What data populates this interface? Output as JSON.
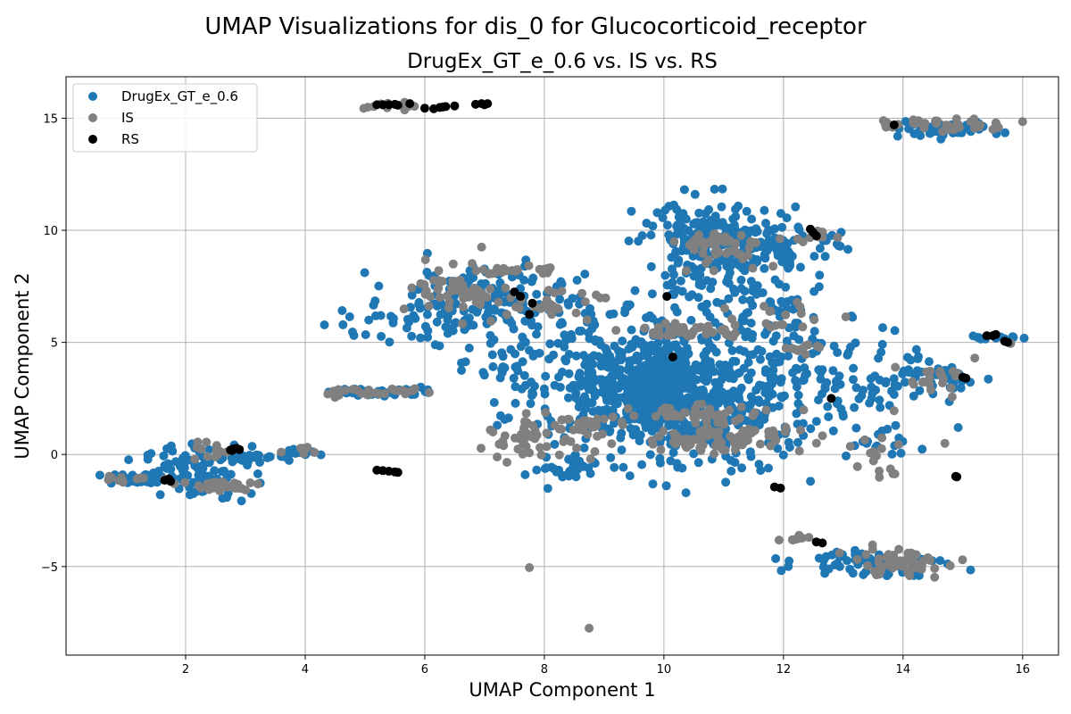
{
  "figure": {
    "suptitle": "UMAP Visualizations for dis_0 for Glucocorticoid_receptor"
  },
  "chart_data": {
    "type": "scatter",
    "title": "DrugEx_GT_e_0.6 vs. IS vs. RS",
    "xlabel": "UMAP Component 1",
    "ylabel": "UMAP Component 2",
    "xlim": [
      0.0,
      16.6
    ],
    "ylim": [
      -8.95,
      16.85
    ],
    "xticks": [
      2,
      4,
      6,
      8,
      10,
      12,
      14,
      16
    ],
    "yticks": [
      -5,
      0,
      5,
      10,
      15
    ],
    "ytick_labels": [
      "−5",
      "0",
      "5",
      "10",
      "15"
    ],
    "grid": true,
    "legend_position": "top-left",
    "series": [
      {
        "name": "DrugEx_GT_e_0.6",
        "color": "#1f77b4",
        "clusters": [
          {
            "cx": 1.2,
            "cy": -1.1,
            "sx": 0.35,
            "sy": 0.12,
            "n": 40
          },
          {
            "cx": 2.2,
            "cy": -0.8,
            "sx": 0.45,
            "sy": 0.6,
            "n": 90
          },
          {
            "cx": 3.3,
            "cy": -0.1,
            "sx": 0.3,
            "sy": 0.12,
            "n": 20
          },
          {
            "cx": 3.9,
            "cy": 0.1,
            "sx": 0.25,
            "sy": 0.1,
            "n": 15
          },
          {
            "cx": 5.3,
            "cy": 2.8,
            "sx": 0.45,
            "sy": 0.1,
            "n": 45
          },
          {
            "cx": 5.4,
            "cy": 6.0,
            "sx": 0.55,
            "sy": 0.6,
            "n": 35
          },
          {
            "cx": 6.9,
            "cy": 6.8,
            "sx": 0.7,
            "sy": 0.8,
            "n": 140
          },
          {
            "cx": 7.3,
            "cy": 4.2,
            "sx": 0.5,
            "sy": 1.0,
            "n": 40
          },
          {
            "cx": 9.0,
            "cy": 3.3,
            "sx": 0.8,
            "sy": 1.6,
            "n": 260
          },
          {
            "cx": 10.0,
            "cy": 3.0,
            "sx": 0.55,
            "sy": 1.3,
            "n": 380
          },
          {
            "cx": 11.0,
            "cy": 2.2,
            "sx": 0.8,
            "sy": 1.4,
            "n": 280
          },
          {
            "cx": 10.8,
            "cy": 9.2,
            "sx": 0.6,
            "sy": 1.1,
            "n": 220
          },
          {
            "cx": 12.0,
            "cy": 9.5,
            "sx": 0.5,
            "sy": 0.6,
            "n": 70
          },
          {
            "cx": 11.8,
            "cy": 6.3,
            "sx": 0.55,
            "sy": 0.7,
            "n": 60
          },
          {
            "cx": 12.6,
            "cy": 3.2,
            "sx": 0.6,
            "sy": 1.2,
            "n": 60
          },
          {
            "cx": 13.9,
            "cy": 3.6,
            "sx": 0.5,
            "sy": 0.8,
            "n": 40
          },
          {
            "cx": 14.8,
            "cy": 3.4,
            "sx": 0.3,
            "sy": 0.3,
            "n": 25
          },
          {
            "cx": 14.6,
            "cy": 14.5,
            "sx": 0.5,
            "sy": 0.15,
            "n": 50
          },
          {
            "cx": 13.5,
            "cy": -4.8,
            "sx": 0.6,
            "sy": 0.3,
            "n": 70
          },
          {
            "cx": 15.5,
            "cy": 5.2,
            "sx": 0.2,
            "sy": 0.1,
            "n": 12
          },
          {
            "cx": 8.3,
            "cy": -0.5,
            "sx": 0.35,
            "sy": 0.3,
            "n": 25
          },
          {
            "cx": 13.6,
            "cy": 0.6,
            "sx": 0.4,
            "sy": 0.5,
            "n": 20
          }
        ]
      },
      {
        "name": "IS",
        "color": "#808080",
        "clusters": [
          {
            "cx": 1.0,
            "cy": -1.1,
            "sx": 0.25,
            "sy": 0.08,
            "n": 12
          },
          {
            "cx": 2.5,
            "cy": -1.4,
            "sx": 0.35,
            "sy": 0.15,
            "n": 30
          },
          {
            "cx": 2.4,
            "cy": 0.1,
            "sx": 0.3,
            "sy": 0.2,
            "n": 15
          },
          {
            "cx": 3.9,
            "cy": 0.2,
            "sx": 0.2,
            "sy": 0.1,
            "n": 8
          },
          {
            "cx": 5.2,
            "cy": 2.8,
            "sx": 0.45,
            "sy": 0.1,
            "n": 25
          },
          {
            "cx": 5.4,
            "cy": 15.5,
            "sx": 0.2,
            "sy": 0.12,
            "n": 10
          },
          {
            "cx": 6.8,
            "cy": 7.2,
            "sx": 0.5,
            "sy": 0.5,
            "n": 60
          },
          {
            "cx": 7.5,
            "cy": 8.2,
            "sx": 0.3,
            "sy": 0.1,
            "n": 25
          },
          {
            "cx": 8.2,
            "cy": 6.7,
            "sx": 0.35,
            "sy": 0.25,
            "n": 25
          },
          {
            "cx": 7.8,
            "cy": 0.7,
            "sx": 0.5,
            "sy": 0.5,
            "n": 40
          },
          {
            "cx": 8.6,
            "cy": 1.3,
            "sx": 0.4,
            "sy": 0.3,
            "n": 30
          },
          {
            "cx": 10.4,
            "cy": 5.5,
            "sx": 0.5,
            "sy": 0.2,
            "n": 45
          },
          {
            "cx": 10.5,
            "cy": 1.8,
            "sx": 0.6,
            "sy": 0.2,
            "n": 40
          },
          {
            "cx": 11.0,
            "cy": 0.7,
            "sx": 0.7,
            "sy": 0.3,
            "n": 80
          },
          {
            "cx": 10.9,
            "cy": 9.3,
            "sx": 0.4,
            "sy": 0.4,
            "n": 50
          },
          {
            "cx": 12.5,
            "cy": 9.7,
            "sx": 0.2,
            "sy": 0.2,
            "n": 12
          },
          {
            "cx": 12.0,
            "cy": 6.2,
            "sx": 0.4,
            "sy": 0.3,
            "n": 15
          },
          {
            "cx": 12.2,
            "cy": -3.8,
            "sx": 0.15,
            "sy": 0.1,
            "n": 8
          },
          {
            "cx": 13.9,
            "cy": -4.8,
            "sx": 0.4,
            "sy": 0.3,
            "n": 60
          },
          {
            "cx": 14.5,
            "cy": 3.2,
            "sx": 0.3,
            "sy": 0.3,
            "n": 20
          },
          {
            "cx": 14.6,
            "cy": 14.7,
            "sx": 0.5,
            "sy": 0.15,
            "n": 35
          },
          {
            "cx": 13.6,
            "cy": -0.2,
            "sx": 0.2,
            "sy": 0.5,
            "n": 15
          },
          {
            "cx": 12.3,
            "cy": 4.8,
            "sx": 0.2,
            "sy": 0.15,
            "n": 10
          }
        ],
        "points": [
          [
            7.75,
            -5.05
          ],
          [
            8.75,
            -7.75
          ],
          [
            6.95,
            9.25
          ],
          [
            4.5,
            2.55
          ],
          [
            13.85,
            1.95
          ],
          [
            15.2,
            4.3
          ],
          [
            16.0,
            14.85
          ],
          [
            15.8,
            4.95
          ],
          [
            14.7,
            0.5
          ]
        ]
      },
      {
        "name": "RS",
        "color": "#000000",
        "points": [
          [
            1.65,
            -1.15
          ],
          [
            1.75,
            -1.2
          ],
          [
            1.72,
            -1.1
          ],
          [
            2.75,
            0.2
          ],
          [
            2.8,
            0.25
          ],
          [
            2.85,
            0.28
          ],
          [
            2.9,
            0.22
          ],
          [
            2.78,
            0.18
          ],
          [
            5.2,
            15.6
          ],
          [
            5.3,
            15.6
          ],
          [
            5.4,
            15.6
          ],
          [
            5.5,
            15.62
          ],
          [
            5.75,
            15.65
          ],
          [
            5.55,
            15.58
          ],
          [
            6.0,
            15.45
          ],
          [
            6.15,
            15.42
          ],
          [
            6.25,
            15.48
          ],
          [
            6.35,
            15.52
          ],
          [
            6.5,
            15.55
          ],
          [
            6.3,
            15.5
          ],
          [
            6.85,
            15.62
          ],
          [
            6.95,
            15.65
          ],
          [
            7.05,
            15.65
          ],
          [
            7.0,
            15.6
          ],
          [
            5.2,
            -0.7
          ],
          [
            5.3,
            -0.72
          ],
          [
            5.4,
            -0.75
          ],
          [
            5.5,
            -0.78
          ],
          [
            5.55,
            -0.8
          ],
          [
            7.5,
            7.25
          ],
          [
            7.6,
            7.05
          ],
          [
            7.8,
            6.75
          ],
          [
            7.75,
            6.25
          ],
          [
            10.05,
            7.05
          ],
          [
            10.15,
            4.35
          ],
          [
            12.45,
            10.05
          ],
          [
            12.5,
            9.9
          ],
          [
            12.55,
            9.75
          ],
          [
            11.85,
            -1.45
          ],
          [
            11.95,
            -1.5
          ],
          [
            12.55,
            -3.9
          ],
          [
            12.65,
            -3.95
          ],
          [
            12.8,
            2.5
          ],
          [
            13.85,
            14.7
          ],
          [
            14.9,
            -1.0
          ],
          [
            14.88,
            -0.98
          ],
          [
            15.0,
            3.45
          ],
          [
            15.05,
            3.4
          ],
          [
            15.4,
            5.3
          ],
          [
            15.5,
            5.3
          ],
          [
            15.55,
            5.35
          ],
          [
            15.7,
            5.05
          ],
          [
            15.75,
            5.0
          ]
        ]
      }
    ]
  }
}
